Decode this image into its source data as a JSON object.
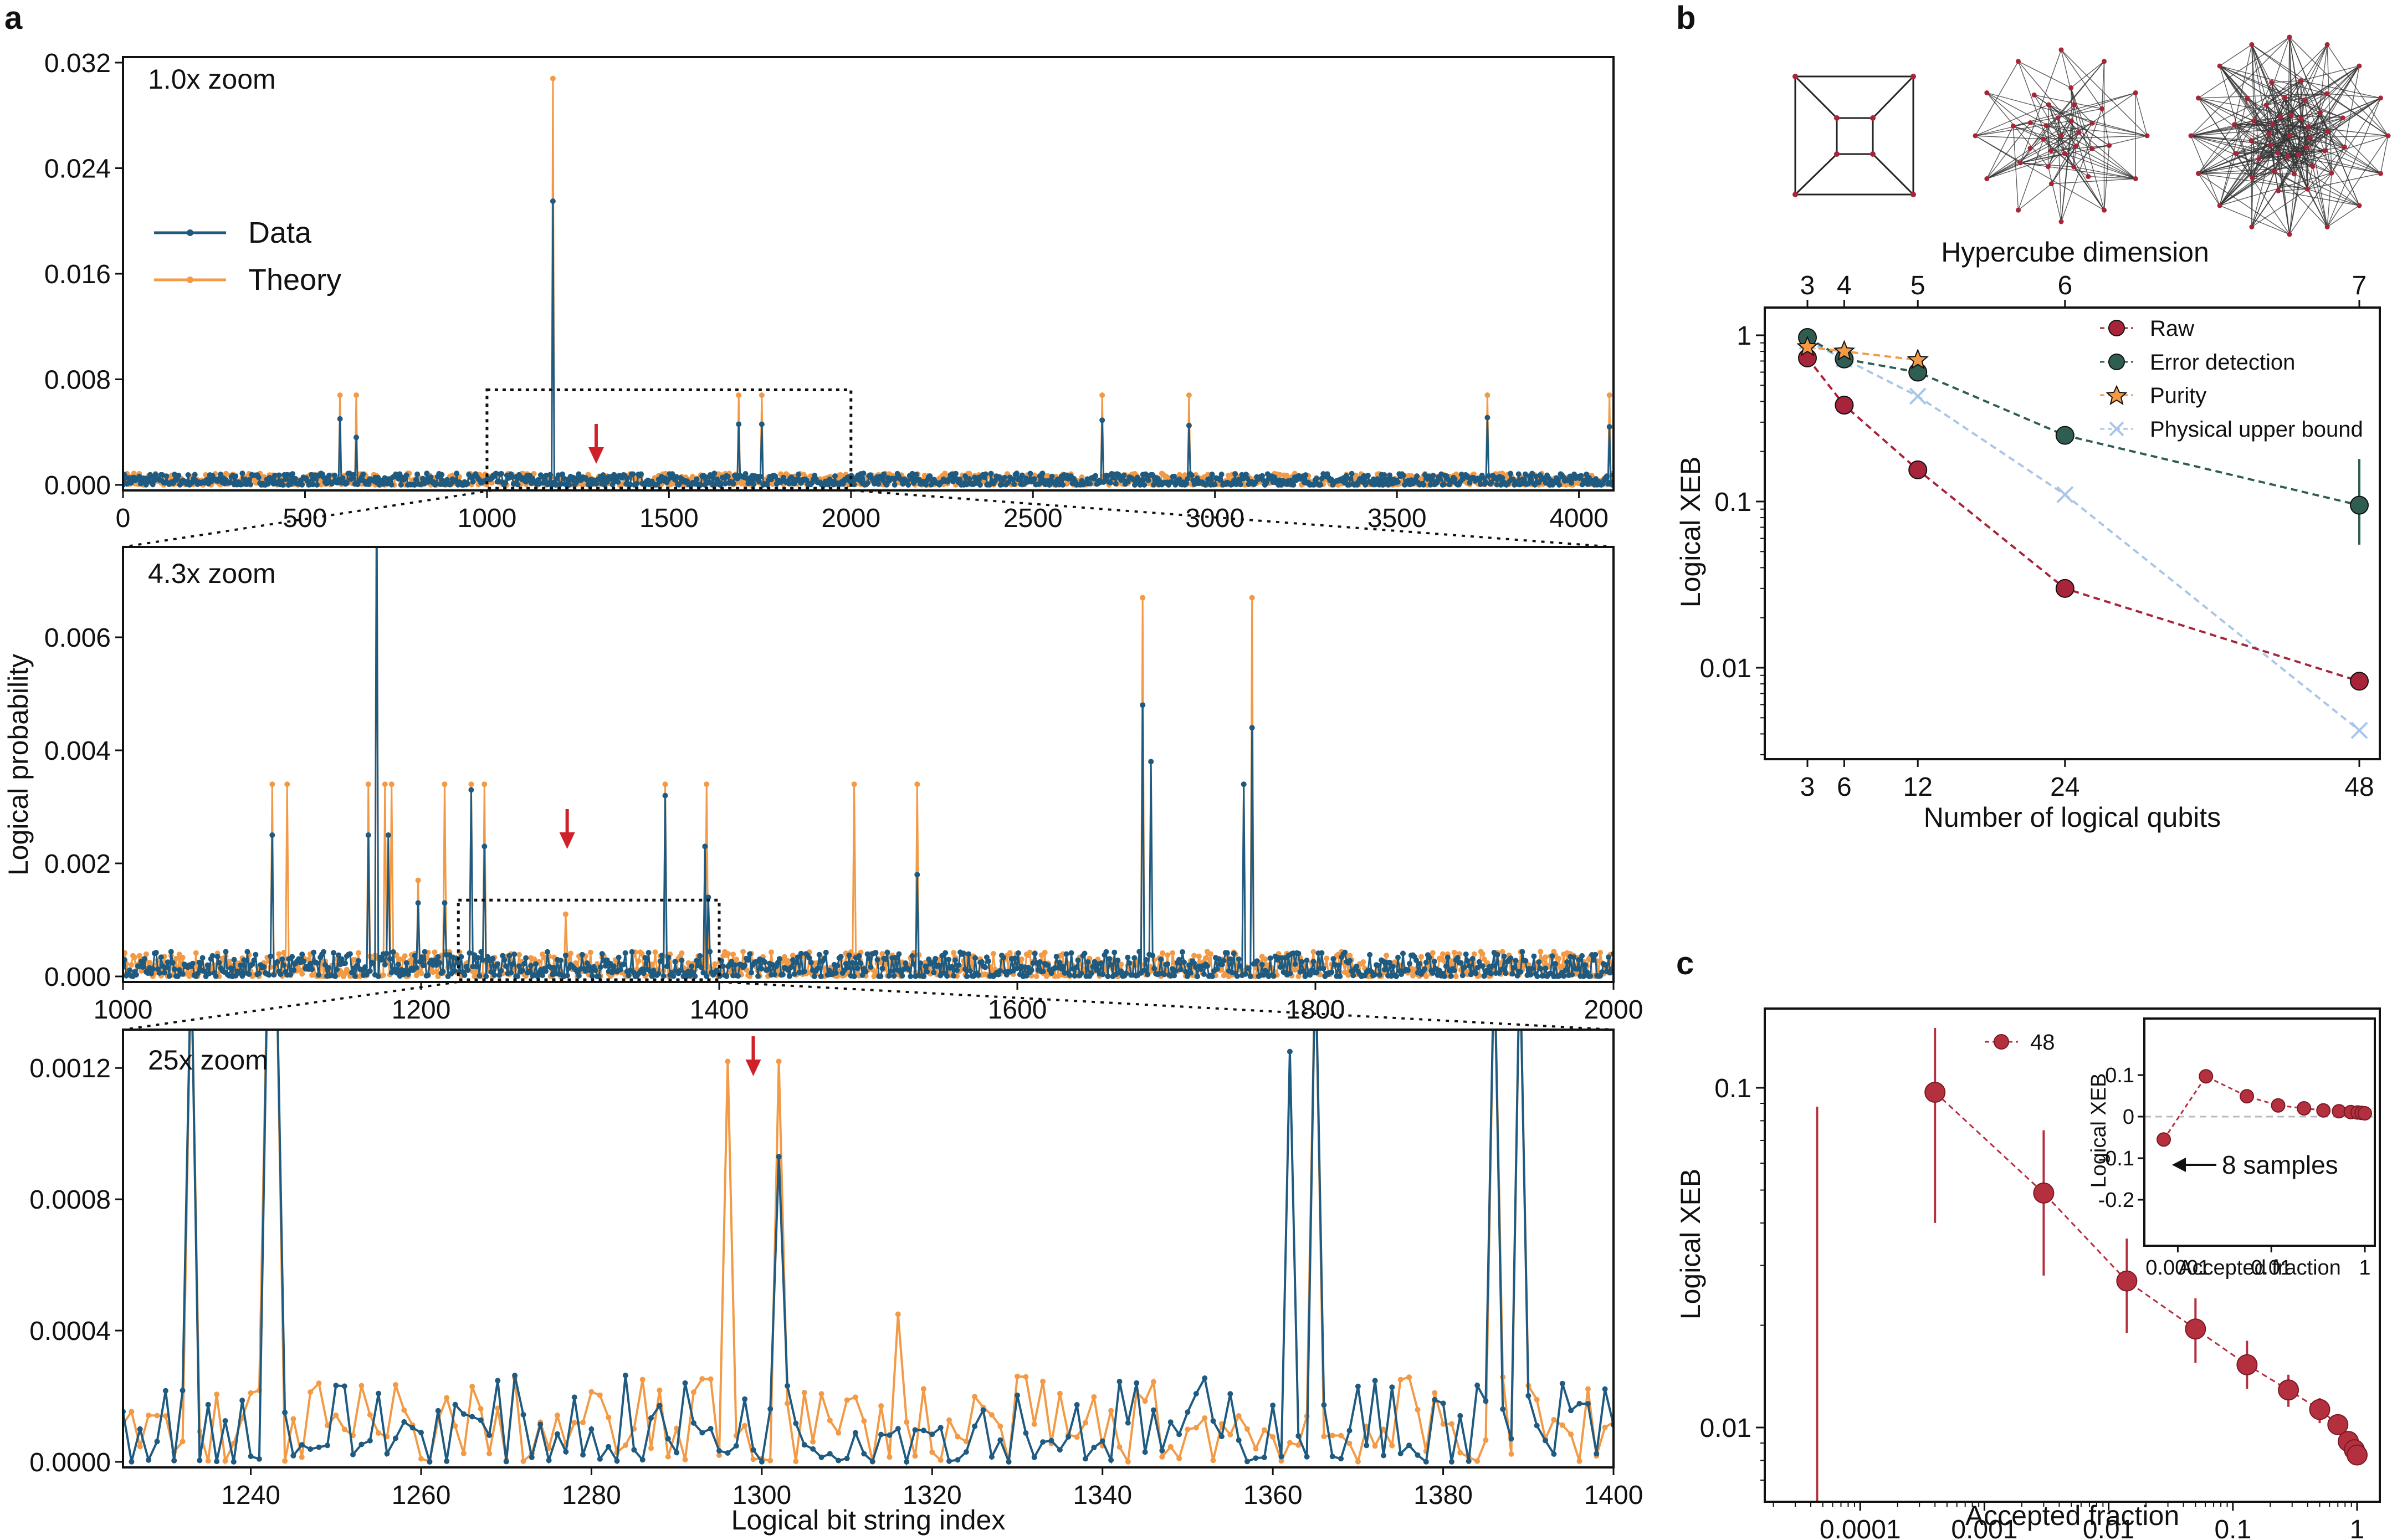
{
  "panel_labels": {
    "a": "a",
    "b": "b",
    "c": "c"
  },
  "colors": {
    "data": "#1f5a80",
    "theory": "#f29a45",
    "raw": "#a8243a",
    "error_detection": "#2f5d52",
    "purity": "#f29a45",
    "physical": "#a9c6e8",
    "arrow": "#d0202a",
    "accepted": "#b5303f"
  },
  "chart_data": [
    {
      "id": "a1",
      "type": "line",
      "annotation": "1.0x zoom",
      "xlim": [
        0,
        4095
      ],
      "ylim": [
        0,
        0.032
      ],
      "xticks": [
        "0",
        "500",
        "1000",
        "1500",
        "2000",
        "2500",
        "3000",
        "3500",
        "4000"
      ],
      "yticks": [
        "0.000",
        "0.008",
        "0.016",
        "0.024",
        "0.032"
      ],
      "legend": [
        "Data",
        "Theory"
      ],
      "legend_position": "middle-left",
      "zoom_box_x": [
        1000,
        2000
      ],
      "zoom_box_y": [
        0,
        0.0072
      ],
      "red_arrow_x": 1300,
      "background_level": 0.0004,
      "series": [
        {
          "name": "Data",
          "peaks": [
            [
              598,
              0.005
            ],
            [
              640,
              0.0036
            ],
            [
              1180,
              0.0215
            ],
            [
              1690,
              0.0046
            ],
            [
              1756,
              0.0046
            ],
            [
              2690,
              0.0049
            ],
            [
              2930,
              0.0045
            ],
            [
              3750,
              0.0051
            ],
            [
              4085,
              0.0044
            ]
          ]
        },
        {
          "name": "Theory",
          "peaks": [
            [
              598,
              0.0068
            ],
            [
              640,
              0.0068
            ],
            [
              1180,
              0.0308
            ],
            [
              1690,
              0.0068
            ],
            [
              1756,
              0.0068
            ],
            [
              2690,
              0.0068
            ],
            [
              2930,
              0.0068
            ],
            [
              3750,
              0.0068
            ],
            [
              4085,
              0.0068
            ]
          ]
        }
      ]
    },
    {
      "id": "a2",
      "type": "line",
      "annotation": "4.3x zoom",
      "xlim": [
        1000,
        2000
      ],
      "ylim": [
        0,
        0.0075
      ],
      "xticks": [
        "1000",
        "1200",
        "1400",
        "1600",
        "1800",
        "2000"
      ],
      "yticks": [
        "0.000",
        "0.002",
        "0.004",
        "0.006"
      ],
      "ylabel": "Logical probability",
      "zoom_box_x": [
        1225,
        1400
      ],
      "zoom_box_y": [
        0,
        0.00135
      ],
      "red_arrow_x": 1298,
      "background_level": 0.0002,
      "series": [
        {
          "name": "Data",
          "peaks": [
            [
              1100,
              0.0025
            ],
            [
              1165,
              0.0025
            ],
            [
              1170,
              0.009
            ],
            [
              1178,
              0.0025
            ],
            [
              1198,
              0.0013
            ],
            [
              1216,
              0.0013
            ],
            [
              1234,
              0.0033
            ],
            [
              1242,
              0.0023
            ],
            [
              1364,
              0.0032
            ],
            [
              1390,
              0.0023
            ],
            [
              1393,
              0.0014
            ],
            [
              1533,
              0.0018
            ],
            [
              1684,
              0.0048
            ],
            [
              1690,
              0.0038
            ],
            [
              1752,
              0.0034
            ],
            [
              1757,
              0.0044
            ]
          ]
        },
        {
          "name": "Theory",
          "peaks": [
            [
              1100,
              0.0034
            ],
            [
              1110,
              0.0034
            ],
            [
              1165,
              0.0034
            ],
            [
              1170,
              0.009
            ],
            [
              1176,
              0.0034
            ],
            [
              1180,
              0.0034
            ],
            [
              1198,
              0.0017
            ],
            [
              1216,
              0.0034
            ],
            [
              1234,
              0.0034
            ],
            [
              1242,
              0.0034
            ],
            [
              1297,
              0.0011
            ],
            [
              1364,
              0.0034
            ],
            [
              1392,
              0.0034
            ],
            [
              1490,
              0.0034
            ],
            [
              1533,
              0.0034
            ],
            [
              1684,
              0.0067
            ],
            [
              1752,
              0.0034
            ],
            [
              1757,
              0.0067
            ]
          ]
        }
      ]
    },
    {
      "id": "a3",
      "type": "line",
      "annotation": "25x zoom",
      "xlim": [
        1225,
        1400
      ],
      "ylim": [
        0,
        0.0013
      ],
      "xticks": [
        "1240",
        "1260",
        "1280",
        "1300",
        "1320",
        "1340",
        "1360",
        "1380",
        "1400"
      ],
      "yticks": [
        "0.0000",
        "0.0004",
        "0.0008",
        "0.0012"
      ],
      "xlabel": "Logical bit string index",
      "red_arrow_x": 1299,
      "background_level": 0.00012,
      "series": [
        {
          "name": "Data",
          "peaks": [
            [
              1233,
              0.0016
            ],
            [
              1242,
              0.0016
            ],
            [
              1243,
              0.0016
            ],
            [
              1302,
              0.00093
            ],
            [
              1362,
              0.00125
            ],
            [
              1365,
              0.0016
            ],
            [
              1386,
              0.0016
            ],
            [
              1389,
              0.0016
            ]
          ]
        },
        {
          "name": "Theory",
          "peaks": [
            [
              1233,
              0.0016
            ],
            [
              1242,
              0.0016
            ],
            [
              1243,
              0.0016
            ],
            [
              1296,
              0.00122
            ],
            [
              1302,
              0.00122
            ],
            [
              1316,
              0.00045
            ],
            [
              1365,
              0.0016
            ],
            [
              1386,
              0.0016
            ],
            [
              1389,
              0.0016
            ]
          ]
        }
      ]
    },
    {
      "id": "b",
      "type": "line",
      "top_xlabel": "Hypercube dimension",
      "top_xticks": [
        3,
        4,
        5,
        6,
        7
      ],
      "xlabel": "Number of logical qubits",
      "ylabel": "Logical XEB",
      "xticks": [
        3,
        6,
        12,
        24,
        48
      ],
      "xlim": [
        0,
        50
      ],
      "ylim_log": [
        0.0025,
        1.2
      ],
      "yticks": [
        "0.01",
        "0.1",
        "1"
      ],
      "yscale": "log",
      "legend_position": "top-right",
      "series": [
        {
          "name": "Raw",
          "x": [
            3,
            6,
            12,
            24,
            48
          ],
          "values": [
            0.73,
            0.38,
            0.155,
            0.03,
            0.0083
          ]
        },
        {
          "name": "Error detection",
          "x": [
            3,
            6,
            12,
            24,
            48
          ],
          "values": [
            0.97,
            0.72,
            0.6,
            0.25,
            0.095
          ],
          "yerr_last": [
            0.055,
            0.18
          ]
        },
        {
          "name": "Purity",
          "x": [
            3,
            6,
            12
          ],
          "values": [
            0.85,
            0.8,
            0.71
          ]
        },
        {
          "name": "Physical upper bound",
          "x": [
            3,
            6,
            12,
            24,
            48
          ],
          "values": [
            0.92,
            0.72,
            0.43,
            0.11,
            0.0042
          ]
        }
      ]
    },
    {
      "id": "c",
      "type": "scatter",
      "xlabel": "Accepted fraction",
      "ylabel": "Logical XEB",
      "xscale": "log",
      "yscale": "log",
      "xlim_log": [
        2e-05,
        1.5
      ],
      "ylim_log": [
        0.0065,
        0.18
      ],
      "xticks": [
        "0.0001",
        "0.001",
        "0.01",
        "0.1",
        "1"
      ],
      "yticks": [
        "0.01",
        "0.1"
      ],
      "legend": [
        "48"
      ],
      "series": [
        {
          "name": "48",
          "x": [
            0.0004,
            0.003,
            0.014,
            0.05,
            0.13,
            0.28,
            0.5,
            0.7,
            0.85,
            0.95,
            1.0
          ],
          "values": [
            0.097,
            0.049,
            0.027,
            0.0195,
            0.0153,
            0.0129,
            0.0113,
            0.0102,
            0.0091,
            0.0086,
            0.0083
          ],
          "yerr": [
            [
              0.04,
              0.15
            ],
            [
              0.028,
              0.075
            ],
            [
              0.019,
              0.036
            ],
            [
              0.0155,
              0.024
            ],
            [
              0.013,
              0.018
            ],
            [
              0.0115,
              0.0143
            ],
            [
              0.0103,
              0.0122
            ],
            [
              0.0095,
              0.0109
            ],
            [
              0.0086,
              0.0096
            ],
            [
              0.0082,
              0.009
            ],
            [
              0.0081,
              0.0085
            ]
          ]
        }
      ],
      "bar_at_left": {
        "x": 4.5e-05,
        "top": 0.088
      }
    },
    {
      "id": "c_inset",
      "type": "scatter",
      "xlabel": "Accepted fraction",
      "ylabel": "Logical XEB",
      "xscale": "log",
      "xlim_log": [
        3e-05,
        1.4
      ],
      "ylim": [
        -0.2,
        0.15
      ],
      "xticks": [
        "0.0001",
        "0.01",
        "1"
      ],
      "yticks": [
        "0.1",
        "0",
        "-0.1",
        "-0.2"
      ],
      "annotation": "8 samples",
      "series": [
        {
          "name": "48",
          "x": [
            5e-05,
            0.0004,
            0.003,
            0.014,
            0.05,
            0.13,
            0.28,
            0.5,
            0.7,
            0.85,
            1.0
          ],
          "values": [
            -0.055,
            0.097,
            0.049,
            0.027,
            0.02,
            0.015,
            0.013,
            0.011,
            0.01,
            0.009,
            0.008
          ]
        }
      ]
    }
  ]
}
